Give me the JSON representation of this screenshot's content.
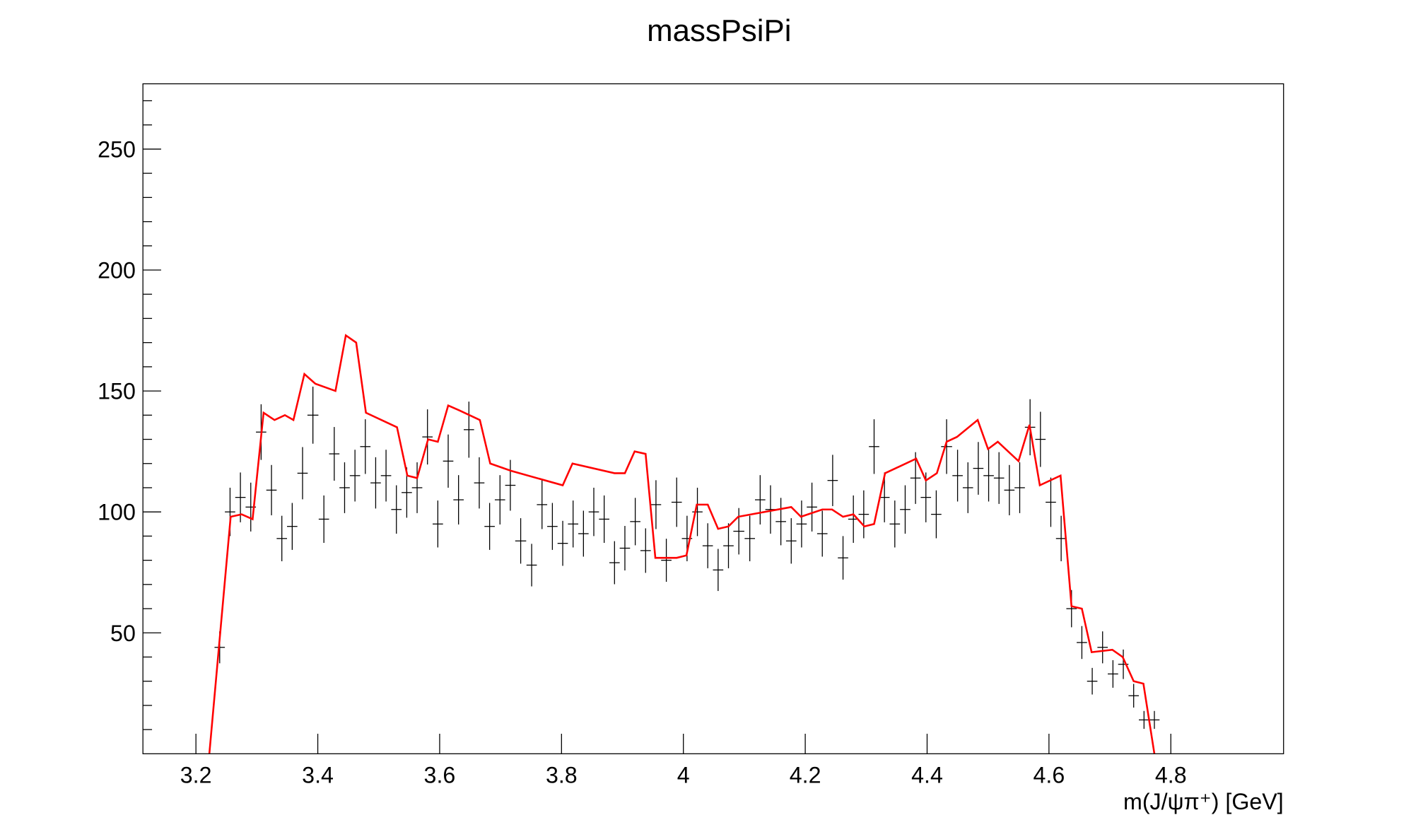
{
  "chart_data": {
    "type": "errorbar",
    "title": "massPsiPi",
    "x_label": "m(J/ψπ⁺) [GeV]",
    "xlim": [
      3.113,
      4.985
    ],
    "ylim": [
      0,
      277
    ],
    "xticks": [
      3.2,
      3.4,
      3.6,
      3.8,
      4,
      4.2,
      4.4,
      4.6,
      4.8
    ],
    "yticks": [
      50,
      100,
      150,
      200,
      250
    ],
    "yminorticks": [
      10,
      20,
      30,
      40,
      60,
      70,
      80,
      90,
      110,
      120,
      130,
      140,
      160,
      170,
      180,
      190,
      210,
      220,
      230,
      240,
      260,
      270
    ],
    "points": {
      "color": "#000000",
      "x": [
        3.239,
        3.256,
        3.273,
        3.29,
        3.307,
        3.324,
        3.341,
        3.358,
        3.375,
        3.392,
        3.41,
        3.427,
        3.444,
        3.461,
        3.478,
        3.495,
        3.512,
        3.529,
        3.546,
        3.563,
        3.58,
        3.597,
        3.614,
        3.631,
        3.648,
        3.665,
        3.682,
        3.699,
        3.716,
        3.733,
        3.751,
        3.768,
        3.785,
        3.802,
        3.819,
        3.836,
        3.853,
        3.87,
        3.887,
        3.904,
        3.921,
        3.938,
        3.955,
        3.972,
        3.989,
        4.006,
        4.023,
        4.04,
        4.057,
        4.074,
        4.091,
        4.109,
        4.126,
        4.143,
        4.16,
        4.177,
        4.194,
        4.211,
        4.228,
        4.245,
        4.262,
        4.279,
        4.296,
        4.313,
        4.33,
        4.347,
        4.364,
        4.381,
        4.398,
        4.415,
        4.432,
        4.45,
        4.467,
        4.484,
        4.501,
        4.518,
        4.535,
        4.552,
        4.569,
        4.586,
        4.603,
        4.62,
        4.637,
        4.654,
        4.671,
        4.688,
        4.705,
        4.722,
        4.739,
        4.756,
        4.773
      ],
      "values": [
        44,
        100,
        106,
        102,
        133,
        109,
        89,
        94,
        116,
        140,
        97,
        124,
        110,
        115,
        127,
        112,
        115,
        101,
        108,
        110,
        131,
        95,
        121,
        105,
        134,
        112,
        94,
        105,
        111,
        88,
        78,
        103,
        94,
        87,
        95,
        91,
        100,
        97,
        79,
        85,
        96,
        84,
        103,
        80,
        104,
        89,
        100,
        86,
        76,
        86,
        92,
        89,
        105,
        101,
        96,
        88,
        95,
        102,
        91,
        113,
        81,
        97,
        99,
        127,
        106,
        95,
        101,
        114,
        106,
        99,
        127,
        115,
        110,
        118,
        115,
        114,
        109,
        110,
        135,
        130,
        104,
        89,
        60,
        46,
        30,
        44,
        33,
        37,
        24,
        14,
        14
      ],
      "errors": [
        6.6,
        10,
        10.3,
        10.1,
        11.5,
        10.4,
        9.4,
        9.7,
        10.8,
        11.8,
        9.8,
        11.1,
        10.5,
        10.7,
        11.3,
        10.6,
        10.7,
        10,
        10.4,
        10.5,
        11.4,
        9.7,
        11,
        10.2,
        11.6,
        10.6,
        9.7,
        10.2,
        10.5,
        9.4,
        8.8,
        10.1,
        9.7,
        9.3,
        9.7,
        9.5,
        10,
        9.8,
        8.9,
        9.2,
        9.8,
        9.2,
        10.1,
        8.9,
        10.2,
        9.4,
        10,
        9.3,
        8.7,
        9.3,
        9.6,
        9.4,
        10.2,
        10,
        9.8,
        9.4,
        9.7,
        10.1,
        9.5,
        10.6,
        9,
        9.8,
        9.9,
        11.3,
        10.3,
        9.7,
        10,
        10.7,
        10.3,
        9.9,
        11.3,
        10.7,
        10.5,
        10.9,
        10.7,
        10.7,
        10.4,
        10.5,
        11.6,
        11.4,
        10.2,
        9.4,
        7.7,
        6.8,
        5.5,
        6.6,
        5.7,
        6.1,
        4.9,
        3.7,
        3.7
      ]
    },
    "curve": {
      "color": "#ff0000",
      "x": [
        3.222,
        3.257,
        3.275,
        3.293,
        3.311,
        3.329,
        3.346,
        3.36,
        3.378,
        3.396,
        3.429,
        3.446,
        3.463,
        3.479,
        3.53,
        3.547,
        3.563,
        3.581,
        3.597,
        3.614,
        3.632,
        3.666,
        3.683,
        3.717,
        3.802,
        3.818,
        3.887,
        3.904,
        3.92,
        3.938,
        3.954,
        3.989,
        4.005,
        4.022,
        4.04,
        4.057,
        4.074,
        4.09,
        4.177,
        4.193,
        4.228,
        4.244,
        4.262,
        4.279,
        4.297,
        4.313,
        4.331,
        4.382,
        4.398,
        4.416,
        4.432,
        4.449,
        4.483,
        4.5,
        4.516,
        4.55,
        4.568,
        4.585,
        4.619,
        4.637,
        4.654,
        4.67,
        4.704,
        4.721,
        4.739,
        4.755,
        4.773
      ],
      "values": [
        0,
        98,
        99,
        97,
        141,
        138,
        140,
        138,
        157,
        153,
        150,
        173,
        170,
        141,
        135,
        115,
        114,
        130,
        129,
        144,
        142,
        138,
        120,
        117,
        111,
        120,
        116,
        116,
        125,
        124,
        81,
        81,
        82,
        103,
        103,
        93,
        94,
        98,
        102,
        98,
        101,
        101,
        98,
        99,
        94,
        95,
        116,
        122,
        113,
        116,
        129,
        131,
        138,
        126,
        129,
        121,
        136,
        111,
        115,
        61,
        60,
        42,
        43,
        40,
        30,
        29,
        0
      ]
    }
  }
}
